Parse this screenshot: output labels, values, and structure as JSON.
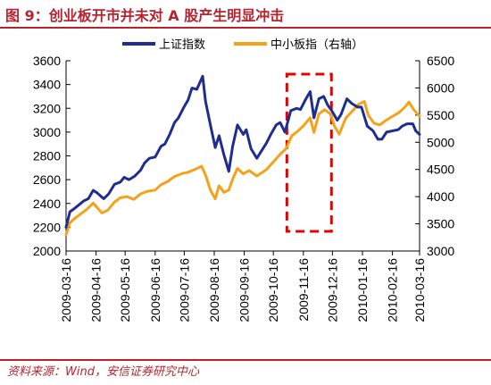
{
  "figure": {
    "title": "图 9：创业板开市并未对 A 股产生明显冲击",
    "source": "资料来源：Wind，安信证券研究中心"
  },
  "colors": {
    "accent": "#b8232f",
    "series1": "#1f2d8f",
    "series2": "#f5a21a",
    "highlight_box": "#e60000"
  },
  "chart_data": {
    "type": "line",
    "title": "",
    "xlabel": "",
    "ylabel": "",
    "x_ticks": [
      "2009-03-16",
      "2009-04-16",
      "2009-05-16",
      "2009-06-16",
      "2009-07-16",
      "2009-08-16",
      "2009-09-16",
      "2009-10-16",
      "2009-11-16",
      "2009-12-16",
      "2010-01-16",
      "2010-02-16",
      "2010-03-16"
    ],
    "xlim": [
      "2009-03-16",
      "2010-03-16"
    ],
    "ylim_left": [
      2000,
      3600
    ],
    "yticks_left": [
      2000,
      2200,
      2400,
      2600,
      2800,
      3000,
      3200,
      3400,
      3600
    ],
    "ylim_right": [
      3000,
      6500
    ],
    "yticks_right": [
      3000,
      3500,
      4000,
      4500,
      5000,
      5500,
      6000,
      6500
    ],
    "legend_position": "top",
    "grid": false,
    "highlight_region": {
      "x_start": "2009-10-30",
      "x_end": "2009-12-15",
      "style": "dashed red box"
    },
    "series": [
      {
        "name": "上证指数",
        "axis": "left",
        "points": [
          [
            "2009-03-16",
            2200
          ],
          [
            "2009-03-20",
            2330
          ],
          [
            "2009-03-25",
            2360
          ],
          [
            "2009-03-31",
            2400
          ],
          [
            "2009-04-03",
            2420
          ],
          [
            "2009-04-08",
            2440
          ],
          [
            "2009-04-13",
            2510
          ],
          [
            "2009-04-17",
            2490
          ],
          [
            "2009-04-21",
            2460
          ],
          [
            "2009-04-24",
            2440
          ],
          [
            "2009-04-29",
            2480
          ],
          [
            "2009-05-05",
            2560
          ],
          [
            "2009-05-11",
            2580
          ],
          [
            "2009-05-15",
            2620
          ],
          [
            "2009-05-20",
            2600
          ],
          [
            "2009-05-26",
            2630
          ],
          [
            "2009-06-01",
            2680
          ],
          [
            "2009-06-05",
            2740
          ],
          [
            "2009-06-10",
            2780
          ],
          [
            "2009-06-16",
            2790
          ],
          [
            "2009-06-22",
            2880
          ],
          [
            "2009-06-26",
            2900
          ],
          [
            "2009-07-01",
            2980
          ],
          [
            "2009-07-06",
            3080
          ],
          [
            "2009-07-10",
            3120
          ],
          [
            "2009-07-15",
            3200
          ],
          [
            "2009-07-20",
            3270
          ],
          [
            "2009-07-24",
            3370
          ],
          [
            "2009-07-29",
            3360
          ],
          [
            "2009-08-04",
            3470
          ],
          [
            "2009-08-07",
            3260
          ],
          [
            "2009-08-12",
            3060
          ],
          [
            "2009-08-17",
            2870
          ],
          [
            "2009-08-21",
            2970
          ],
          [
            "2009-08-26",
            2810
          ],
          [
            "2009-08-31",
            2670
          ],
          [
            "2009-09-04",
            2880
          ],
          [
            "2009-09-09",
            3060
          ],
          [
            "2009-09-15",
            2980
          ],
          [
            "2009-09-18",
            3020
          ],
          [
            "2009-09-23",
            2860
          ],
          [
            "2009-09-29",
            2780
          ],
          [
            "2009-10-09",
            2910
          ],
          [
            "2009-10-14",
            2990
          ],
          [
            "2009-10-19",
            3060
          ],
          [
            "2009-10-23",
            3080
          ],
          [
            "2009-10-28",
            3000
          ],
          [
            "2009-11-03",
            3180
          ],
          [
            "2009-11-09",
            3200
          ],
          [
            "2009-11-13",
            3190
          ],
          [
            "2009-11-18",
            3270
          ],
          [
            "2009-11-23",
            3340
          ],
          [
            "2009-11-27",
            3120
          ],
          [
            "2009-12-02",
            3280
          ],
          [
            "2009-12-07",
            3300
          ],
          [
            "2009-12-11",
            3230
          ],
          [
            "2009-12-16",
            3170
          ],
          [
            "2009-12-21",
            3100
          ],
          [
            "2009-12-25",
            3150
          ],
          [
            "2009-12-31",
            3280
          ],
          [
            "2010-01-05",
            3240
          ],
          [
            "2010-01-11",
            3210
          ],
          [
            "2010-01-15",
            3210
          ],
          [
            "2010-01-21",
            3050
          ],
          [
            "2010-01-27",
            3010
          ],
          [
            "2010-02-01",
            2940
          ],
          [
            "2010-02-05",
            2940
          ],
          [
            "2010-02-10",
            3000
          ],
          [
            "2010-02-22",
            3020
          ],
          [
            "2010-02-26",
            3050
          ],
          [
            "2010-03-03",
            3070
          ],
          [
            "2010-03-09",
            3070
          ],
          [
            "2010-03-12",
            3010
          ],
          [
            "2010-03-16",
            2980
          ]
        ]
      },
      {
        "name": "中小板指（右轴）",
        "axis": "right",
        "points": [
          [
            "2009-03-16",
            3300
          ],
          [
            "2009-03-20",
            3520
          ],
          [
            "2009-03-25",
            3600
          ],
          [
            "2009-03-31",
            3680
          ],
          [
            "2009-04-06",
            3760
          ],
          [
            "2009-04-13",
            3880
          ],
          [
            "2009-04-17",
            3800
          ],
          [
            "2009-04-22",
            3700
          ],
          [
            "2009-04-28",
            3750
          ],
          [
            "2009-05-05",
            3900
          ],
          [
            "2009-05-11",
            3980
          ],
          [
            "2009-05-18",
            4000
          ],
          [
            "2009-05-25",
            3950
          ],
          [
            "2009-06-01",
            4050
          ],
          [
            "2009-06-08",
            4100
          ],
          [
            "2009-06-16",
            4120
          ],
          [
            "2009-06-22",
            4220
          ],
          [
            "2009-06-29",
            4280
          ],
          [
            "2009-07-06",
            4370
          ],
          [
            "2009-07-13",
            4420
          ],
          [
            "2009-07-20",
            4450
          ],
          [
            "2009-07-27",
            4500
          ],
          [
            "2009-08-03",
            4560
          ],
          [
            "2009-08-07",
            4400
          ],
          [
            "2009-08-12",
            4120
          ],
          [
            "2009-08-17",
            3960
          ],
          [
            "2009-08-21",
            4200
          ],
          [
            "2009-08-26",
            4080
          ],
          [
            "2009-08-31",
            4120
          ],
          [
            "2009-09-04",
            4320
          ],
          [
            "2009-09-09",
            4520
          ],
          [
            "2009-09-15",
            4420
          ],
          [
            "2009-09-21",
            4480
          ],
          [
            "2009-09-29",
            4380
          ],
          [
            "2009-10-09",
            4500
          ],
          [
            "2009-10-16",
            4640
          ],
          [
            "2009-10-23",
            4780
          ],
          [
            "2009-10-29",
            4880
          ],
          [
            "2009-11-04",
            5120
          ],
          [
            "2009-11-10",
            5200
          ],
          [
            "2009-11-16",
            5300
          ],
          [
            "2009-11-23",
            5450
          ],
          [
            "2009-11-27",
            5180
          ],
          [
            "2009-12-02",
            5520
          ],
          [
            "2009-12-08",
            5600
          ],
          [
            "2009-12-14",
            5520
          ],
          [
            "2009-12-18",
            5300
          ],
          [
            "2009-12-23",
            5150
          ],
          [
            "2009-12-30",
            5450
          ],
          [
            "2010-01-06",
            5580
          ],
          [
            "2010-01-12",
            5700
          ],
          [
            "2010-01-18",
            5750
          ],
          [
            "2010-01-22",
            5500
          ],
          [
            "2010-01-28",
            5350
          ],
          [
            "2010-02-03",
            5320
          ],
          [
            "2010-02-09",
            5400
          ],
          [
            "2010-02-23",
            5550
          ],
          [
            "2010-03-01",
            5650
          ],
          [
            "2010-03-05",
            5740
          ],
          [
            "2010-03-10",
            5600
          ],
          [
            "2010-03-16",
            5480
          ]
        ]
      }
    ]
  }
}
